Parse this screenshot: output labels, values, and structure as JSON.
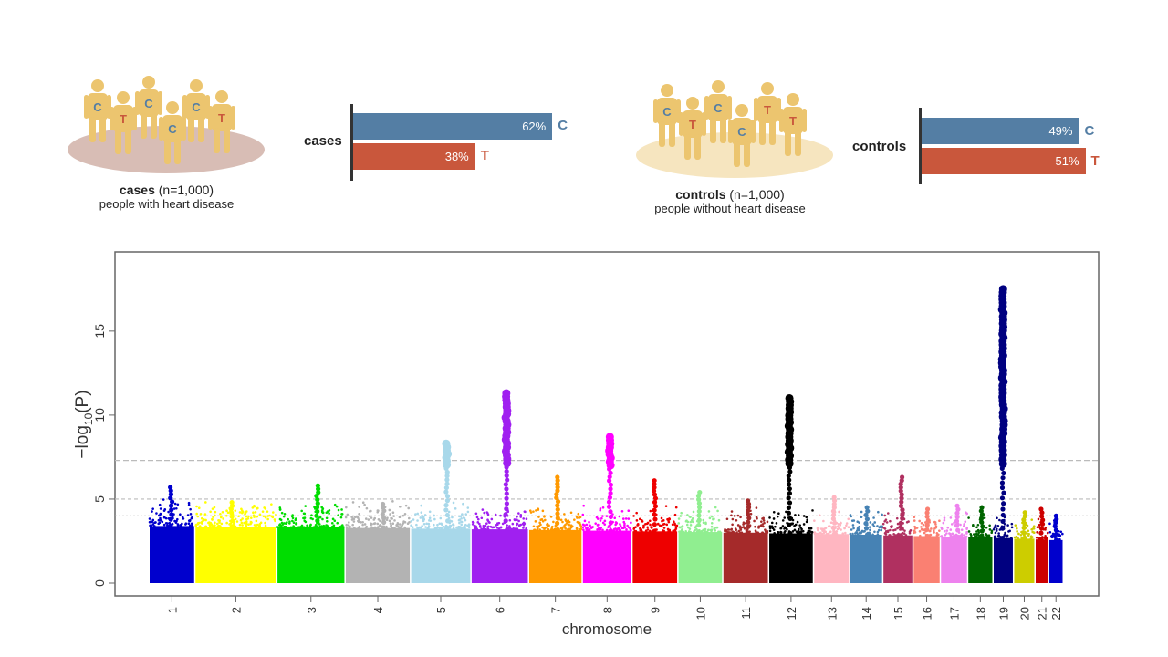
{
  "cases_group": {
    "title_bold": "cases",
    "title_rest": " (n=1,000)",
    "subtitle": "people with heart disease",
    "figure_alleles": [
      "C",
      "T",
      "C",
      "C",
      "C",
      "T"
    ]
  },
  "controls_group": {
    "title_bold": "controls",
    "title_rest": " (n=1,000)",
    "subtitle": "people without heart disease",
    "figure_alleles": [
      "C",
      "T",
      "C",
      "C",
      "T",
      "T"
    ]
  },
  "colors": {
    "C": "#547ea4",
    "T": "#c9573c",
    "person": "#ecc56f",
    "cases_ground": "#d8bdb5",
    "controls_ground": "#f6e5bf"
  },
  "allele_bars": [
    {
      "label": "cases",
      "bars": [
        {
          "allele": "C",
          "percent": 62,
          "text": "62%"
        },
        {
          "allele": "T",
          "percent": 38,
          "text": "38%"
        }
      ]
    },
    {
      "label": "controls",
      "bars": [
        {
          "allele": "C",
          "percent": 49,
          "text": "49%"
        },
        {
          "allele": "T",
          "percent": 51,
          "text": "51%"
        }
      ]
    }
  ],
  "chart_data": {
    "type": "scatter",
    "xlabel": "chromosome",
    "ylabel_main": "−log",
    "ylabel_sub": "10",
    "ylabel_end": "(P)",
    "ylim": [
      0,
      19.5
    ],
    "yticks": [
      0,
      5,
      10,
      15
    ],
    "threshold_lines": [
      7.3,
      5,
      4
    ],
    "chromosomes": [
      {
        "name": "1",
        "color": "#0000cd",
        "peak": 5.7
      },
      {
        "name": "2",
        "color": "#ffff00",
        "peak": 4.8
      },
      {
        "name": "3",
        "color": "#00dd00",
        "peak": 5.8
      },
      {
        "name": "4",
        "color": "#b3b3b3",
        "peak": 4.7
      },
      {
        "name": "5",
        "color": "#a8d8ea",
        "peak": 8.3
      },
      {
        "name": "6",
        "color": "#a020f0",
        "peak": 11.3
      },
      {
        "name": "7",
        "color": "#ff9900",
        "peak": 6.3
      },
      {
        "name": "8",
        "color": "#ff00ff",
        "peak": 8.7
      },
      {
        "name": "9",
        "color": "#ee0000",
        "peak": 6.1
      },
      {
        "name": "10",
        "color": "#90ee90",
        "peak": 5.4
      },
      {
        "name": "11",
        "color": "#a52a2a",
        "peak": 4.9
      },
      {
        "name": "12",
        "color": "#000000",
        "peak": 11.0
      },
      {
        "name": "13",
        "color": "#ffb6c1",
        "peak": 5.1
      },
      {
        "name": "14",
        "color": "#4682b4",
        "peak": 4.5
      },
      {
        "name": "15",
        "color": "#b03060",
        "peak": 6.3
      },
      {
        "name": "16",
        "color": "#fa8072",
        "peak": 4.4
      },
      {
        "name": "17",
        "color": "#ee82ee",
        "peak": 4.6
      },
      {
        "name": "18",
        "color": "#006400",
        "peak": 4.5
      },
      {
        "name": "19",
        "color": "#000080",
        "peak": 17.5
      },
      {
        "name": "20",
        "color": "#cdcd00",
        "peak": 4.2
      },
      {
        "name": "21",
        "color": "#cd0000",
        "peak": 4.4
      },
      {
        "name": "22",
        "color": "#0000cd",
        "peak": 4.0
      }
    ]
  }
}
